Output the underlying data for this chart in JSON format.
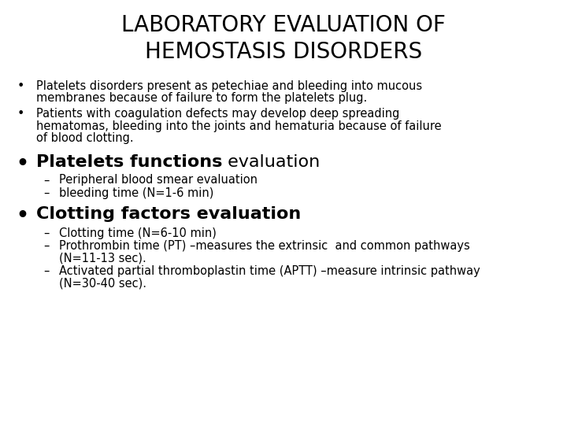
{
  "title_line1": "LABORATORY EVALUATION OF",
  "title_line2": "HEMOSTASIS DISORDERS",
  "background_color": "#ffffff",
  "text_color": "#000000",
  "title_fontsize": 20,
  "body_fontsize": 10.5,
  "bold_header_fontsize": 16,
  "sub_fontsize": 10.5,
  "content": [
    {
      "type": "bullet",
      "style": "normal",
      "lines": [
        "Platelets disorders present as petechiae and bleeding into mucous",
        "membranes because of failure to form the platelets plug."
      ]
    },
    {
      "type": "bullet",
      "style": "normal",
      "lines": [
        "Patients with coagulation defects may develop deep spreading",
        "hematomas, bleeding into the joints and hematuria because of failure",
        "of blood clotting."
      ]
    },
    {
      "type": "bold_header",
      "bold_part": "Platelets functions",
      "normal_part": " evaluation"
    },
    {
      "type": "dash",
      "lines": [
        "Peripheral blood smear evaluation"
      ]
    },
    {
      "type": "dash",
      "lines": [
        "bleeding time (N=1-6 min)"
      ]
    },
    {
      "type": "bold_header",
      "bold_part": "Clotting factors evaluation",
      "normal_part": ""
    },
    {
      "type": "dash",
      "lines": [
        "Clotting time (N=6-10 min)"
      ]
    },
    {
      "type": "dash",
      "lines": [
        "Prothrombin time (PT) –measures the extrinsic  and common pathways",
        "(N=11-13 sec)."
      ]
    },
    {
      "type": "dash",
      "lines": [
        "Activated partial thromboplastin time (APTT) –measure intrinsic pathway",
        "(N=30-40 sec)."
      ]
    }
  ]
}
